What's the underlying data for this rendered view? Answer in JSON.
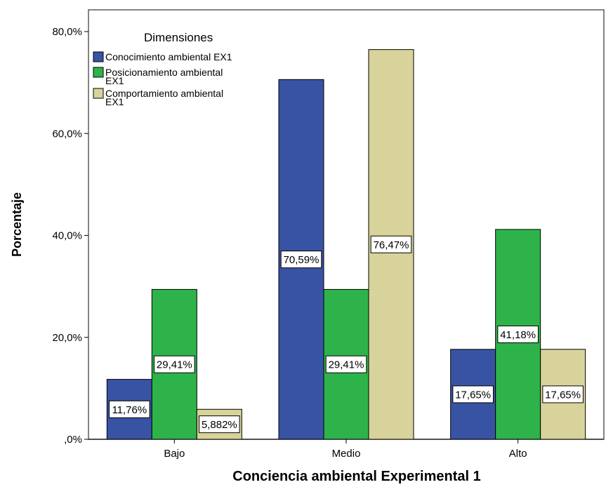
{
  "chart_data": {
    "type": "bar",
    "title": "",
    "xlabel": "Conciencia ambiental Experimental 1",
    "ylabel": "Porcentaje",
    "categories": [
      "Bajo",
      "Medio",
      "Alto"
    ],
    "ylim": [
      0,
      80
    ],
    "y_ticks": [
      0,
      20,
      40,
      60,
      80
    ],
    "y_tick_labels": [
      ",0%",
      "20,0%",
      "40,0%",
      "60,0%",
      "80,0%"
    ],
    "grid": false,
    "legend": {
      "title": "Dimensiones",
      "placement": "top-left"
    },
    "series": [
      {
        "name": "Conocimiento ambiental EX1",
        "name_lines": [
          "Conocimiento ambiental EX1"
        ],
        "color": "#3953a4",
        "values": [
          11.76,
          70.59,
          17.65
        ],
        "labels": [
          "11,76%",
          "70,59%",
          "17,65%"
        ]
      },
      {
        "name": "Posicionamiento ambiental EX1",
        "name_lines": [
          "Posicionamiento ambiental",
          "EX1"
        ],
        "color": "#2db34a",
        "values": [
          29.41,
          29.41,
          41.18
        ],
        "labels": [
          "29,41%",
          "29,41%",
          "41,18%"
        ]
      },
      {
        "name": "Comportamiento ambiental EX1",
        "name_lines": [
          "Comportamiento ambiental",
          "EX1"
        ],
        "color": "#d8d39a",
        "values": [
          5.882,
          76.47,
          17.65
        ],
        "labels": [
          "5,882%",
          "76,47%",
          "17,65%"
        ]
      }
    ]
  }
}
